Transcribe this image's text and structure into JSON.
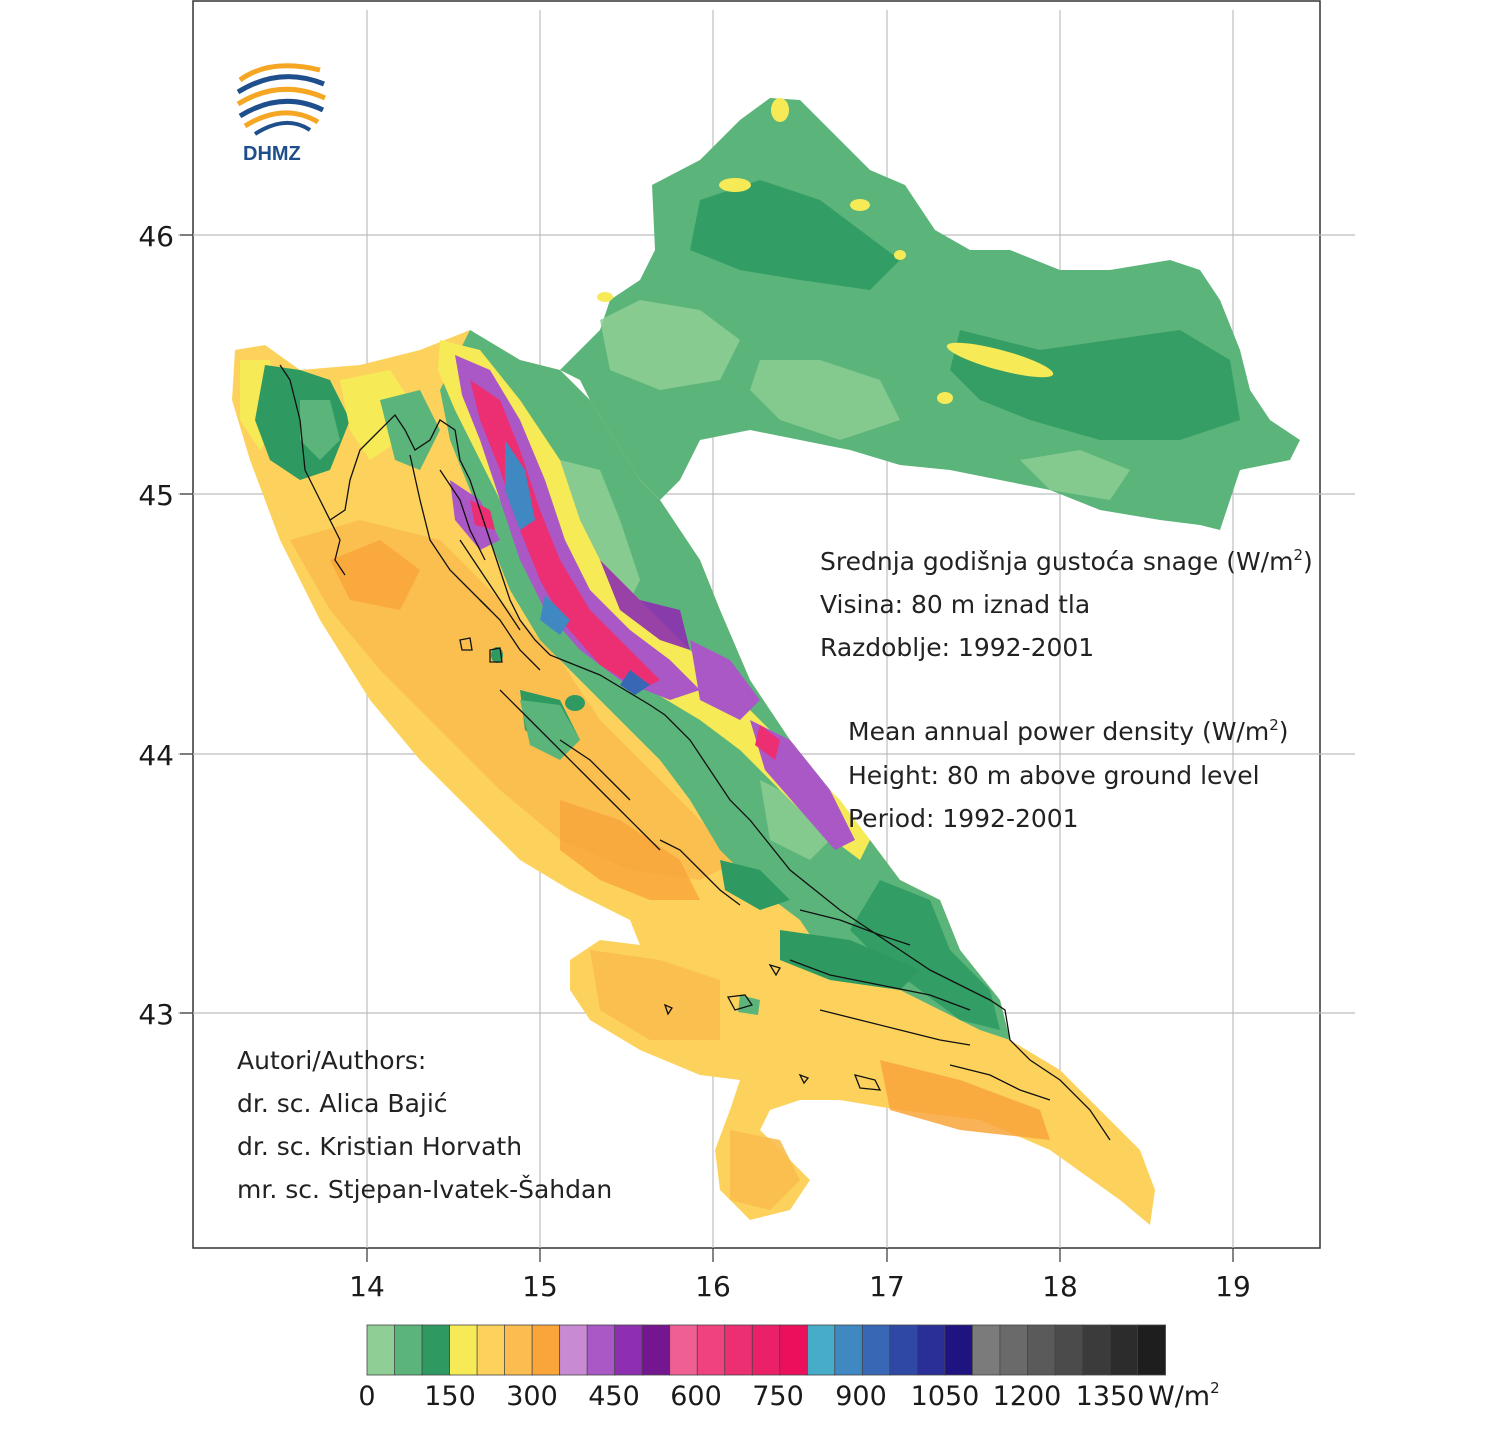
{
  "logo": {
    "text": "DHMZ"
  },
  "map": {
    "x_ticks": [
      "14",
      "15",
      "16",
      "17",
      "18",
      "19"
    ],
    "y_ticks": [
      "46",
      "45",
      "44",
      "43"
    ]
  },
  "info_hr": {
    "title": "Srednja godišnja gustoća snage (W/m",
    "title_sup": "2",
    "title_end": ")",
    "height": "Visina: 80 m iznad tla",
    "period": "Razdoblje: 1992-2001"
  },
  "info_en": {
    "title": "Mean annual power density (W/m",
    "title_sup": "2",
    "title_end": ")",
    "height": "Height: 80 m above ground level",
    "period": "Period: 1992-2001"
  },
  "authors": {
    "heading": "Autori/Authors:",
    "lines": [
      "dr. sc. Alica Bajić",
      "dr. sc. Kristian Horvath",
      "mr. sc. Stjepan-Ivatek-Šahdan"
    ]
  },
  "legend": {
    "colors": [
      "#8fcf95",
      "#5bb57a",
      "#2e9a62",
      "#f7ea57",
      "#fcd25c",
      "#fbbd4f",
      "#f9a53a",
      "#c88ad2",
      "#a958c6",
      "#8d2fb0",
      "#73168f",
      "#ef5f93",
      "#f0427f",
      "#ec2f72",
      "#ea2068",
      "#ec0f5c",
      "#47acc8",
      "#3f88c2",
      "#3868b5",
      "#2f48a6",
      "#2a2f97",
      "#1f1382",
      "#7b7b7b",
      "#6a6a6a",
      "#5a5a5a",
      "#4b4b4b",
      "#3b3b3b",
      "#2c2c2c",
      "#1e1e1e"
    ],
    "labels": [
      "0",
      "150",
      "300",
      "450",
      "600",
      "750",
      "900",
      "1050",
      "1200",
      "1350"
    ],
    "unit": "W/m",
    "unit_sup": "2"
  }
}
